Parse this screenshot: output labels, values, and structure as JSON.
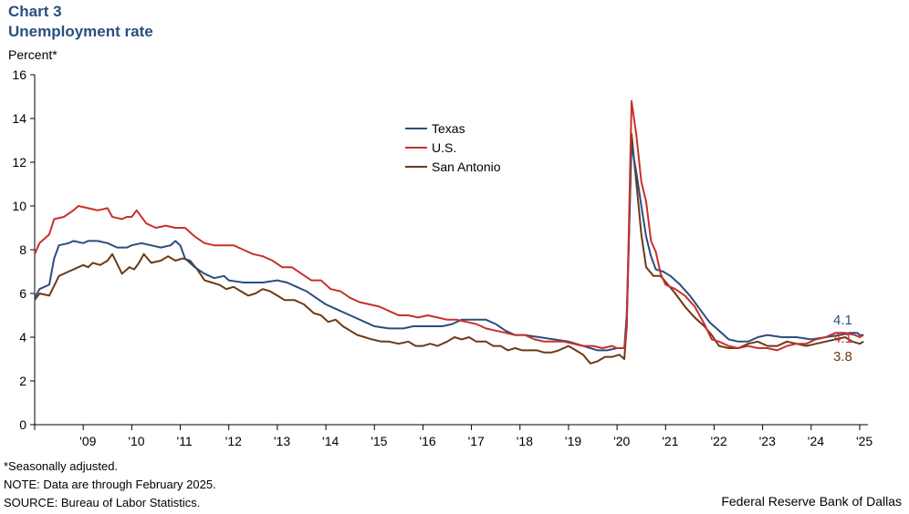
{
  "header": {
    "label": "Chart 3",
    "title": "Unemployment rate",
    "y_unit": "Percent*"
  },
  "footnotes": {
    "adjusted": "*Seasonally adjusted.",
    "note": "NOTE: Data are through February 2025.",
    "source": "SOURCE: Bureau of Labor Statistics."
  },
  "credit": "Federal Reserve Bank of Dallas",
  "colors": {
    "texas": "#2b4e7e",
    "us": "#c8302c",
    "san_antonio": "#6b3a16"
  },
  "chart_data": {
    "type": "line",
    "title": "Unemployment rate",
    "ylabel": "Percent*",
    "xlabel": "",
    "xlim": [
      2008.0,
      2025.17
    ],
    "ylim": [
      0,
      16
    ],
    "y_ticks": [
      0,
      2,
      4,
      6,
      8,
      10,
      12,
      14,
      16
    ],
    "y_tick_labels": [
      "0",
      "2",
      "4",
      "6",
      "8",
      "10",
      "12",
      "14",
      "16"
    ],
    "x_tick_labels": [
      "'09",
      "'10",
      "'11",
      "'12",
      "'13",
      "'14",
      "'15",
      "'16",
      "'17",
      "'18",
      "'19",
      "'20",
      "'21",
      "'22",
      "'23",
      "'24",
      "'25"
    ],
    "grid": false,
    "legend_position": "upper-middle",
    "end_labels": [
      "4.1",
      "4.1",
      "3.8"
    ],
    "series": [
      {
        "name": "Texas",
        "color": "#2b4e7e",
        "points": [
          [
            2008.0,
            5.8
          ],
          [
            2008.1,
            6.2
          ],
          [
            2008.3,
            6.4
          ],
          [
            2008.4,
            7.6
          ],
          [
            2008.5,
            8.2
          ],
          [
            2008.7,
            8.3
          ],
          [
            2008.8,
            8.4
          ],
          [
            2009.0,
            8.3
          ],
          [
            2009.1,
            8.4
          ],
          [
            2009.3,
            8.4
          ],
          [
            2009.5,
            8.3
          ],
          [
            2009.7,
            8.1
          ],
          [
            2009.9,
            8.1
          ],
          [
            2010.0,
            8.2
          ],
          [
            2010.2,
            8.3
          ],
          [
            2010.4,
            8.2
          ],
          [
            2010.6,
            8.1
          ],
          [
            2010.8,
            8.2
          ],
          [
            2010.9,
            8.4
          ],
          [
            2011.0,
            8.2
          ],
          [
            2011.1,
            7.6
          ],
          [
            2011.3,
            7.2
          ],
          [
            2011.5,
            6.9
          ],
          [
            2011.7,
            6.7
          ],
          [
            2011.9,
            6.8
          ],
          [
            2012.0,
            6.6
          ],
          [
            2012.3,
            6.5
          ],
          [
            2012.7,
            6.5
          ],
          [
            2013.0,
            6.6
          ],
          [
            2013.2,
            6.5
          ],
          [
            2013.4,
            6.3
          ],
          [
            2013.6,
            6.1
          ],
          [
            2013.8,
            5.8
          ],
          [
            2014.0,
            5.5
          ],
          [
            2014.2,
            5.3
          ],
          [
            2014.4,
            5.1
          ],
          [
            2014.6,
            4.9
          ],
          [
            2014.8,
            4.7
          ],
          [
            2015.0,
            4.5
          ],
          [
            2015.3,
            4.4
          ],
          [
            2015.6,
            4.4
          ],
          [
            2015.8,
            4.5
          ],
          [
            2016.0,
            4.5
          ],
          [
            2016.4,
            4.5
          ],
          [
            2016.6,
            4.6
          ],
          [
            2016.8,
            4.8
          ],
          [
            2017.0,
            4.8
          ],
          [
            2017.3,
            4.8
          ],
          [
            2017.5,
            4.6
          ],
          [
            2017.7,
            4.3
          ],
          [
            2017.9,
            4.1
          ],
          [
            2018.1,
            4.1
          ],
          [
            2018.4,
            4.0
          ],
          [
            2018.7,
            3.9
          ],
          [
            2019.0,
            3.8
          ],
          [
            2019.3,
            3.6
          ],
          [
            2019.6,
            3.4
          ],
          [
            2019.8,
            3.4
          ],
          [
            2020.0,
            3.5
          ],
          [
            2020.15,
            3.5
          ],
          [
            2020.2,
            5.0
          ],
          [
            2020.3,
            12.8
          ],
          [
            2020.4,
            11.5
          ],
          [
            2020.5,
            10.0
          ],
          [
            2020.6,
            8.6
          ],
          [
            2020.7,
            7.7
          ],
          [
            2020.8,
            7.1
          ],
          [
            2020.95,
            7.0
          ],
          [
            2021.1,
            6.8
          ],
          [
            2021.3,
            6.4
          ],
          [
            2021.5,
            5.9
          ],
          [
            2021.7,
            5.3
          ],
          [
            2021.9,
            4.7
          ],
          [
            2022.1,
            4.3
          ],
          [
            2022.3,
            3.9
          ],
          [
            2022.5,
            3.8
          ],
          [
            2022.7,
            3.8
          ],
          [
            2022.9,
            4.0
          ],
          [
            2023.1,
            4.1
          ],
          [
            2023.4,
            4.0
          ],
          [
            2023.7,
            4.0
          ],
          [
            2024.0,
            3.9
          ],
          [
            2024.3,
            4.0
          ],
          [
            2024.6,
            4.1
          ],
          [
            2024.8,
            4.2
          ],
          [
            2024.95,
            4.2
          ],
          [
            2025.0,
            4.1
          ],
          [
            2025.08,
            4.1
          ]
        ]
      },
      {
        "name": "U.S.",
        "color": "#c8302c",
        "points": [
          [
            2008.0,
            7.8
          ],
          [
            2008.1,
            8.3
          ],
          [
            2008.3,
            8.7
          ],
          [
            2008.4,
            9.4
          ],
          [
            2008.6,
            9.5
          ],
          [
            2008.8,
            9.8
          ],
          [
            2008.9,
            10.0
          ],
          [
            2009.1,
            9.9
          ],
          [
            2009.3,
            9.8
          ],
          [
            2009.5,
            9.9
          ],
          [
            2009.6,
            9.5
          ],
          [
            2009.8,
            9.4
          ],
          [
            2009.9,
            9.5
          ],
          [
            2010.0,
            9.5
          ],
          [
            2010.1,
            9.8
          ],
          [
            2010.3,
            9.2
          ],
          [
            2010.5,
            9.0
          ],
          [
            2010.7,
            9.1
          ],
          [
            2010.9,
            9.0
          ],
          [
            2011.1,
            9.0
          ],
          [
            2011.3,
            8.6
          ],
          [
            2011.5,
            8.3
          ],
          [
            2011.7,
            8.2
          ],
          [
            2011.9,
            8.2
          ],
          [
            2012.1,
            8.2
          ],
          [
            2012.3,
            8.0
          ],
          [
            2012.5,
            7.8
          ],
          [
            2012.7,
            7.7
          ],
          [
            2012.9,
            7.5
          ],
          [
            2013.1,
            7.2
          ],
          [
            2013.3,
            7.2
          ],
          [
            2013.5,
            6.9
          ],
          [
            2013.7,
            6.6
          ],
          [
            2013.9,
            6.6
          ],
          [
            2014.1,
            6.2
          ],
          [
            2014.3,
            6.1
          ],
          [
            2014.5,
            5.8
          ],
          [
            2014.7,
            5.6
          ],
          [
            2014.9,
            5.5
          ],
          [
            2015.1,
            5.4
          ],
          [
            2015.3,
            5.2
          ],
          [
            2015.5,
            5.0
          ],
          [
            2015.7,
            5.0
          ],
          [
            2015.9,
            4.9
          ],
          [
            2016.1,
            5.0
          ],
          [
            2016.3,
            4.9
          ],
          [
            2016.5,
            4.8
          ],
          [
            2016.7,
            4.8
          ],
          [
            2016.9,
            4.7
          ],
          [
            2017.1,
            4.6
          ],
          [
            2017.3,
            4.4
          ],
          [
            2017.5,
            4.3
          ],
          [
            2017.7,
            4.2
          ],
          [
            2017.9,
            4.1
          ],
          [
            2018.1,
            4.1
          ],
          [
            2018.3,
            3.9
          ],
          [
            2018.5,
            3.8
          ],
          [
            2018.7,
            3.8
          ],
          [
            2018.9,
            3.8
          ],
          [
            2019.1,
            3.7
          ],
          [
            2019.3,
            3.6
          ],
          [
            2019.5,
            3.6
          ],
          [
            2019.7,
            3.5
          ],
          [
            2019.9,
            3.6
          ],
          [
            2020.0,
            3.5
          ],
          [
            2020.15,
            3.5
          ],
          [
            2020.2,
            4.4
          ],
          [
            2020.3,
            14.8
          ],
          [
            2020.4,
            13.2
          ],
          [
            2020.5,
            11.1
          ],
          [
            2020.6,
            10.2
          ],
          [
            2020.7,
            8.4
          ],
          [
            2020.8,
            7.9
          ],
          [
            2020.9,
            6.9
          ],
          [
            2021.0,
            6.4
          ],
          [
            2021.2,
            6.2
          ],
          [
            2021.4,
            5.9
          ],
          [
            2021.6,
            5.4
          ],
          [
            2021.8,
            4.6
          ],
          [
            2021.95,
            3.9
          ],
          [
            2022.1,
            3.8
          ],
          [
            2022.3,
            3.6
          ],
          [
            2022.5,
            3.5
          ],
          [
            2022.7,
            3.6
          ],
          [
            2022.9,
            3.5
          ],
          [
            2023.1,
            3.5
          ],
          [
            2023.3,
            3.4
          ],
          [
            2023.5,
            3.6
          ],
          [
            2023.7,
            3.7
          ],
          [
            2023.9,
            3.7
          ],
          [
            2024.1,
            3.9
          ],
          [
            2024.3,
            4.0
          ],
          [
            2024.5,
            4.2
          ],
          [
            2024.7,
            4.2
          ],
          [
            2024.9,
            4.1
          ],
          [
            2025.0,
            4.0
          ],
          [
            2025.08,
            4.1
          ]
        ]
      },
      {
        "name": "San Antonio",
        "color": "#6b3a16",
        "points": [
          [
            2008.0,
            5.7
          ],
          [
            2008.1,
            6.0
          ],
          [
            2008.3,
            5.9
          ],
          [
            2008.5,
            6.8
          ],
          [
            2008.7,
            7.0
          ],
          [
            2008.9,
            7.2
          ],
          [
            2009.0,
            7.3
          ],
          [
            2009.1,
            7.2
          ],
          [
            2009.2,
            7.4
          ],
          [
            2009.35,
            7.3
          ],
          [
            2009.5,
            7.5
          ],
          [
            2009.6,
            7.8
          ],
          [
            2009.8,
            6.9
          ],
          [
            2009.95,
            7.2
          ],
          [
            2010.05,
            7.1
          ],
          [
            2010.15,
            7.4
          ],
          [
            2010.25,
            7.8
          ],
          [
            2010.4,
            7.4
          ],
          [
            2010.6,
            7.5
          ],
          [
            2010.75,
            7.7
          ],
          [
            2010.9,
            7.5
          ],
          [
            2011.05,
            7.6
          ],
          [
            2011.2,
            7.5
          ],
          [
            2011.35,
            7.1
          ],
          [
            2011.5,
            6.6
          ],
          [
            2011.65,
            6.5
          ],
          [
            2011.8,
            6.4
          ],
          [
            2011.95,
            6.2
          ],
          [
            2012.1,
            6.3
          ],
          [
            2012.25,
            6.1
          ],
          [
            2012.4,
            5.9
          ],
          [
            2012.55,
            6.0
          ],
          [
            2012.7,
            6.2
          ],
          [
            2012.85,
            6.1
          ],
          [
            2013.0,
            5.9
          ],
          [
            2013.15,
            5.7
          ],
          [
            2013.35,
            5.7
          ],
          [
            2013.55,
            5.5
          ],
          [
            2013.75,
            5.1
          ],
          [
            2013.9,
            5.0
          ],
          [
            2014.05,
            4.7
          ],
          [
            2014.2,
            4.8
          ],
          [
            2014.35,
            4.5
          ],
          [
            2014.5,
            4.3
          ],
          [
            2014.65,
            4.1
          ],
          [
            2014.8,
            4.0
          ],
          [
            2014.95,
            3.9
          ],
          [
            2015.15,
            3.8
          ],
          [
            2015.3,
            3.8
          ],
          [
            2015.5,
            3.7
          ],
          [
            2015.7,
            3.8
          ],
          [
            2015.85,
            3.6
          ],
          [
            2016.0,
            3.6
          ],
          [
            2016.15,
            3.7
          ],
          [
            2016.3,
            3.6
          ],
          [
            2016.5,
            3.8
          ],
          [
            2016.65,
            4.0
          ],
          [
            2016.8,
            3.9
          ],
          [
            2016.95,
            4.0
          ],
          [
            2017.1,
            3.8
          ],
          [
            2017.3,
            3.8
          ],
          [
            2017.45,
            3.6
          ],
          [
            2017.6,
            3.6
          ],
          [
            2017.75,
            3.4
          ],
          [
            2017.9,
            3.5
          ],
          [
            2018.05,
            3.4
          ],
          [
            2018.2,
            3.4
          ],
          [
            2018.35,
            3.4
          ],
          [
            2018.5,
            3.3
          ],
          [
            2018.65,
            3.3
          ],
          [
            2018.8,
            3.4
          ],
          [
            2019.0,
            3.6
          ],
          [
            2019.15,
            3.4
          ],
          [
            2019.3,
            3.2
          ],
          [
            2019.45,
            2.8
          ],
          [
            2019.6,
            2.9
          ],
          [
            2019.75,
            3.1
          ],
          [
            2019.9,
            3.1
          ],
          [
            2020.05,
            3.2
          ],
          [
            2020.15,
            3.0
          ],
          [
            2020.2,
            4.5
          ],
          [
            2020.3,
            13.3
          ],
          [
            2020.4,
            11.0
          ],
          [
            2020.5,
            8.7
          ],
          [
            2020.6,
            7.2
          ],
          [
            2020.75,
            6.8
          ],
          [
            2020.9,
            6.8
          ],
          [
            2021.05,
            6.4
          ],
          [
            2021.2,
            6.0
          ],
          [
            2021.4,
            5.4
          ],
          [
            2021.6,
            4.9
          ],
          [
            2021.8,
            4.5
          ],
          [
            2021.95,
            4.1
          ],
          [
            2022.1,
            3.6
          ],
          [
            2022.3,
            3.5
          ],
          [
            2022.5,
            3.5
          ],
          [
            2022.7,
            3.7
          ],
          [
            2022.9,
            3.8
          ],
          [
            2023.1,
            3.6
          ],
          [
            2023.3,
            3.6
          ],
          [
            2023.5,
            3.8
          ],
          [
            2023.7,
            3.7
          ],
          [
            2023.9,
            3.6
          ],
          [
            2024.1,
            3.7
          ],
          [
            2024.3,
            3.8
          ],
          [
            2024.5,
            3.9
          ],
          [
            2024.7,
            4.0
          ],
          [
            2024.85,
            3.8
          ],
          [
            2025.0,
            3.7
          ],
          [
            2025.08,
            3.8
          ]
        ]
      }
    ]
  }
}
